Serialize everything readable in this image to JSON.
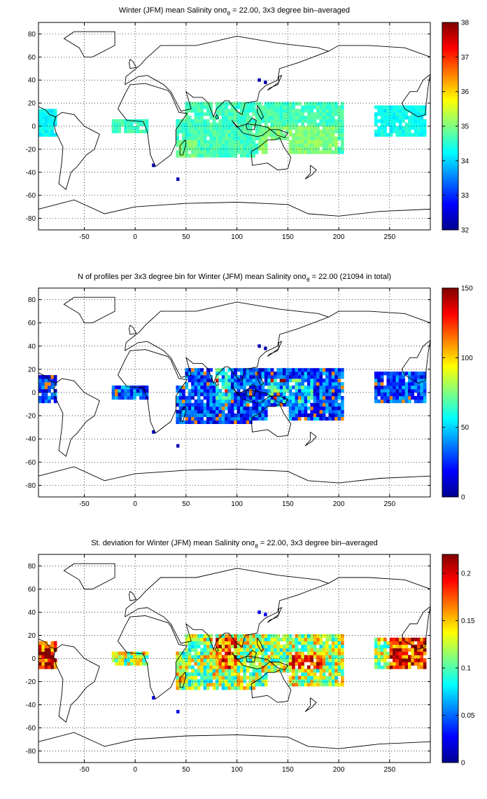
{
  "chart_data": [
    {
      "type": "heatmap",
      "title_pre": "Winter (JFM) mean Salinity on",
      "title_sym": "σ",
      "title_sub": "θ",
      "title_post": " = 22.00, 3x3 degree bin–averaged",
      "xticks": [
        -50,
        0,
        50,
        100,
        150,
        200,
        250
      ],
      "yticks": [
        80,
        60,
        40,
        20,
        0,
        -20,
        -40,
        -60,
        -80
      ],
      "xlim": [
        -95,
        290
      ],
      "ylim": [
        -90,
        90
      ],
      "grid": true,
      "colorbar": {
        "ticks": [
          38,
          37,
          36,
          35,
          34,
          33,
          32
        ],
        "clim": [
          32,
          38
        ],
        "colormap": "jet"
      },
      "value_range_shown": [
        33.5,
        35.5
      ]
    },
    {
      "type": "heatmap",
      "title_pre": "N of profiles per 3x3 degree bin for Winter (JFM) mean Salinity on",
      "title_sym": "σ",
      "title_sub": "θ",
      "title_post": " = 22.00 (21094 in total)",
      "xticks": [
        -50,
        0,
        50,
        100,
        150,
        200,
        250
      ],
      "yticks": [
        80,
        60,
        40,
        20,
        0,
        -20,
        -40,
        -60,
        -80
      ],
      "xlim": [
        -95,
        290
      ],
      "ylim": [
        -90,
        90
      ],
      "grid": true,
      "colorbar": {
        "ticks": [
          150,
          100,
          50,
          0
        ],
        "clim": [
          0,
          150
        ],
        "colormap": "jet"
      },
      "total_profiles": 21094
    },
    {
      "type": "heatmap",
      "title_pre": "St. deviation for Winter (JFM) mean Salinity on",
      "title_sym": "σ",
      "title_sub": "θ",
      "title_post": " = 22.00, 3x3 degree bin–averaged",
      "xticks": [
        -50,
        0,
        50,
        100,
        150,
        200,
        250
      ],
      "yticks": [
        80,
        60,
        40,
        20,
        0,
        -20,
        -40,
        -60,
        -80
      ],
      "xlim": [
        -95,
        290
      ],
      "ylim": [
        -90,
        90
      ],
      "grid": true,
      "colorbar": {
        "ticks": [
          0.2,
          0.15,
          0.1,
          0.05,
          0
        ],
        "clim": [
          0,
          0.22
        ],
        "colormap": "jet"
      }
    }
  ],
  "colors": {
    "background": "#ffffff",
    "axis": "#000000",
    "coastline": "#000000"
  }
}
